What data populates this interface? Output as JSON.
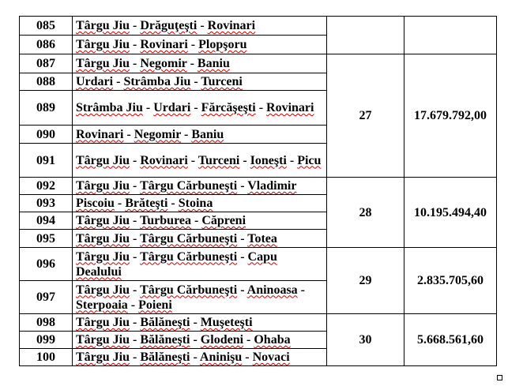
{
  "table": {
    "rows": [
      {
        "code": "085",
        "parts": [
          "Târgu Jiu",
          " - ",
          "Drăguţeşti",
          " - ",
          "Rovinari"
        ]
      },
      {
        "code": "086",
        "parts": [
          "Târgu Jiu",
          " - ",
          "Rovinari",
          " - ",
          "Plopşoru"
        ]
      },
      {
        "code": "087",
        "parts": [
          "Târgu Jiu",
          " - ",
          "Negomir",
          " - ",
          "Baniu"
        ]
      },
      {
        "code": "088",
        "parts": [
          "Urdari",
          " - ",
          "Strâmba Jiu",
          " - ",
          "Turceni"
        ]
      },
      {
        "code": "089",
        "parts": [
          "Strâmba Jiu",
          " - ",
          "Urdari",
          " - ",
          "Fărcăşeşti",
          " - ",
          "Rovinari"
        ]
      },
      {
        "code": "090",
        "parts": [
          "Rovinari",
          " - ",
          "Negomir",
          " - ",
          "Baniu"
        ]
      },
      {
        "code": "091",
        "parts": [
          "Târgu Jiu",
          " - ",
          "Rovinari",
          " - ",
          "Turceni",
          " - ",
          "Ioneşti",
          " - ",
          "Picu"
        ]
      },
      {
        "code": "092",
        "parts": [
          "Târgu Jiu",
          " - ",
          "Târgu Cărbuneşti",
          " - ",
          "Vladimir"
        ]
      },
      {
        "code": "093",
        "parts": [
          "Piscoiu",
          " - ",
          "Brăteşti",
          " - ",
          "Stoina"
        ]
      },
      {
        "code": "094",
        "parts": [
          "Târgu Jiu",
          " - ",
          "Turburea",
          " - ",
          "Căpreni"
        ]
      },
      {
        "code": "095",
        "parts": [
          "Târgu Jiu",
          " - ",
          "Târgu Cărbuneşti",
          " - ",
          "Totea"
        ]
      },
      {
        "code": "096",
        "parts": [
          "Târgu Jiu",
          " - ",
          "Târgu Cărbuneşti",
          " - ",
          "Capu Dealului"
        ]
      },
      {
        "code": "097",
        "parts": [
          "Târgu Jiu",
          " - ",
          "Târgu Cărbuneşti",
          " - ",
          "Aninoasa",
          " - ",
          "Sterpoaia",
          " - ",
          "Poieni"
        ]
      },
      {
        "code": "098",
        "parts": [
          "Târgu Jiu",
          " - ",
          "Bălăneşti",
          " - ",
          "Muşeteşti"
        ]
      },
      {
        "code": "099",
        "parts": [
          "Târgu Jiu",
          " - ",
          "Bălăneşti",
          " - ",
          "Glodeni",
          " - ",
          "Ohaba"
        ]
      },
      {
        "code": "100",
        "parts": [
          "Târgu Jiu",
          " - ",
          "Bălăneşti",
          " - ",
          "Aninişu",
          " - ",
          "Novaci"
        ]
      }
    ],
    "lots": [
      {
        "lot": "",
        "value": ""
      },
      {
        "lot": "27",
        "value": "17.679.792,00"
      },
      {
        "lot": "28",
        "value": "10.195.494,40"
      },
      {
        "lot": "29",
        "value": "2.835.705,60"
      },
      {
        "lot": "30",
        "value": "5.668.561,60"
      }
    ]
  }
}
